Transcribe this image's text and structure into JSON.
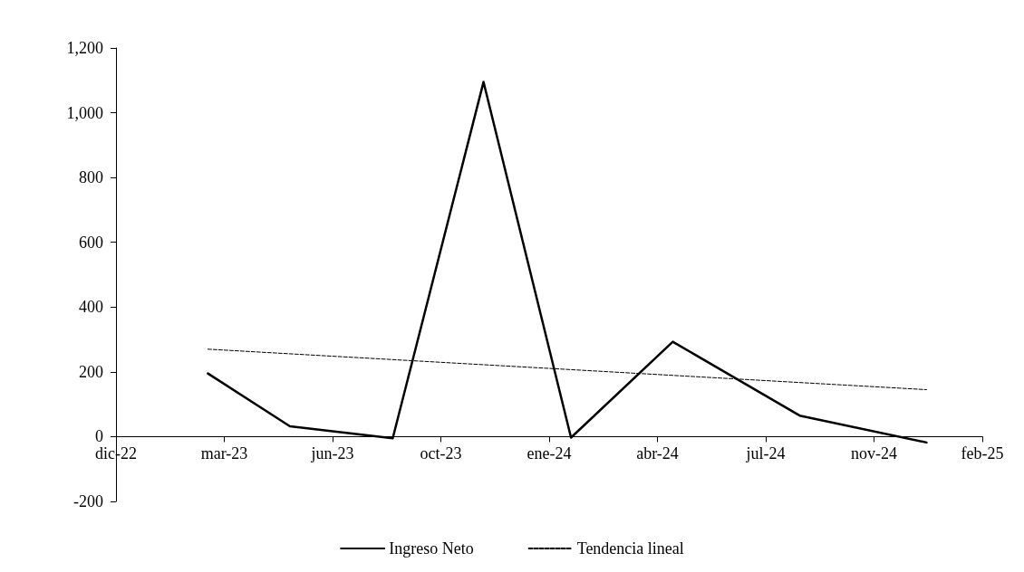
{
  "chart_data": {
    "type": "line",
    "series": [
      {
        "name": "Ingreso Neto",
        "color": "#000000",
        "line_style": "solid",
        "x": [
          "2023-03-06",
          "2023-05-20",
          "2023-08-22",
          "2023-11-13",
          "2024-02-01",
          "2024-05-04",
          "2024-08-28",
          "2024-12-22"
        ],
        "values": [
          195,
          32,
          -5,
          1095,
          -3,
          293,
          65,
          -18
        ]
      },
      {
        "name": "Tendencia lineal",
        "color": "#000000",
        "line_style": "dashed",
        "x": [
          "2023-03-06",
          "2024-12-22"
        ],
        "values": [
          270,
          145
        ]
      }
    ],
    "xlim": [
      "2022-12-12",
      "2025-02-11"
    ],
    "xticks": [
      {
        "value": "2022-12-12",
        "label": "dic-22"
      },
      {
        "value": "2023-03-21",
        "label": "mar-23"
      },
      {
        "value": "2023-06-28",
        "label": "jun-23"
      },
      {
        "value": "2023-10-05",
        "label": "oct-23"
      },
      {
        "value": "2024-01-12",
        "label": "ene-24"
      },
      {
        "value": "2024-04-20",
        "label": "abr-24"
      },
      {
        "value": "2024-07-28",
        "label": "jul-24"
      },
      {
        "value": "2024-11-04",
        "label": "nov-24"
      },
      {
        "value": "2025-02-11",
        "label": "feb-25"
      }
    ],
    "ylim": [
      -200,
      1200
    ],
    "yticks": [
      -200,
      0,
      200,
      400,
      600,
      800,
      {
        "value": 1000,
        "label": "1,000"
      },
      {
        "value": 1200,
        "label": "1,200"
      }
    ],
    "grid": false,
    "legend": "bottom",
    "marker": "none"
  }
}
